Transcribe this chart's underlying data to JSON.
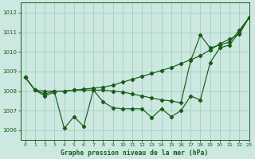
{
  "title": "Graphe pression niveau de la mer (hPa)",
  "bg_color": "#cce8e0",
  "grid_color": "#99ccbb",
  "line_color": "#1a5c1a",
  "xlim": [
    -0.5,
    23
  ],
  "ylim": [
    1005.5,
    1012.5
  ],
  "yticks": [
    1006,
    1007,
    1008,
    1009,
    1010,
    1011,
    1012
  ],
  "xticks": [
    0,
    1,
    2,
    3,
    4,
    5,
    6,
    7,
    8,
    9,
    10,
    11,
    12,
    13,
    14,
    15,
    16,
    17,
    18,
    19,
    20,
    21,
    22,
    23
  ],
  "series_upper": [
    1008.7,
    1008.05,
    1008.0,
    1008.0,
    1008.0,
    1008.05,
    1008.1,
    1008.15,
    1008.2,
    1008.3,
    1008.45,
    1008.6,
    1008.75,
    1008.9,
    1009.05,
    1009.2,
    1009.4,
    1009.6,
    1009.8,
    1010.1,
    1010.4,
    1010.65,
    1010.9,
    1011.75
  ],
  "series_mid": [
    1008.7,
    1008.05,
    1007.85,
    1008.0,
    1008.0,
    1008.05,
    1008.05,
    1008.05,
    1008.05,
    1008.0,
    1007.95,
    1007.85,
    1007.75,
    1007.65,
    1007.55,
    1007.5,
    1007.4,
    1009.55,
    1010.85,
    1010.2,
    1010.35,
    1010.5,
    1011.1,
    1011.75
  ],
  "series_low": [
    1008.7,
    1008.05,
    1007.75,
    1007.95,
    1006.1,
    1006.7,
    1006.2,
    1008.05,
    1007.45,
    1007.15,
    1007.1,
    1007.1,
    1007.1,
    1006.65,
    1007.1,
    1006.7,
    1007.0,
    1007.75,
    1007.55,
    1009.45,
    1010.2,
    1010.35,
    1011.0,
    1011.75
  ]
}
